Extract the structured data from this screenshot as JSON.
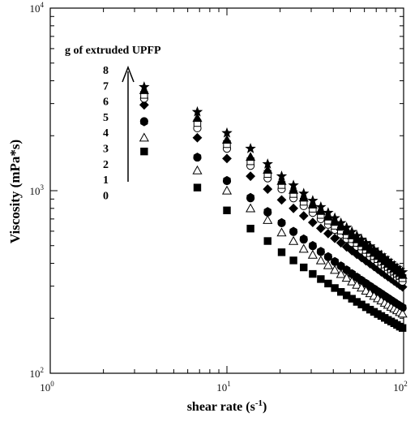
{
  "chart_data": {
    "type": "scatter",
    "title": "",
    "xlabel": "shear rate (s",
    "xlabel_sup": "-1",
    "xlabel_tail": ")",
    "ylabel": "Viscosity (mPa*s)",
    "x_scale": "log",
    "y_scale": "log",
    "xlim": [
      1,
      100
    ],
    "ylim": [
      100,
      10000
    ],
    "x_ticks": [
      {
        "value": 1,
        "base": "10",
        "exp": "0"
      },
      {
        "value": 10,
        "base": "10",
        "exp": "1"
      },
      {
        "value": 100,
        "base": "10",
        "exp": "2"
      }
    ],
    "y_ticks": [
      {
        "value": 100,
        "base": "10",
        "exp": "2"
      },
      {
        "value": 1000,
        "base": "10",
        "exp": "3"
      },
      {
        "value": 10000,
        "base": "10",
        "exp": "4"
      }
    ],
    "grid": false,
    "legend": {
      "title": "g of extruded UPFP",
      "placement": "top-left",
      "labels": [
        "8",
        "7",
        "6",
        "5",
        "4",
        "3",
        "2",
        "1",
        "0"
      ]
    },
    "x": [
      3.4,
      6.8,
      10.0,
      13.6,
      17.0,
      20.4,
      23.8,
      27.2,
      30.6,
      34.0,
      37.4,
      40.8,
      44.2,
      47.6,
      51.0,
      54.4,
      57.8,
      61.2,
      64.6,
      68.0,
      71.4,
      74.8,
      78.2,
      81.6,
      85.0,
      88.4,
      91.8,
      95.2,
      98.6
    ],
    "series": [
      {
        "marker": "filled-square",
        "values": [
          1640,
          1040,
          780,
          620,
          530,
          460,
          415,
          380,
          350,
          328,
          310,
          293,
          279,
          267,
          256,
          246,
          238,
          230,
          223,
          217,
          211,
          206,
          201,
          196,
          192,
          188,
          184,
          180,
          177
        ]
      },
      {
        "marker": "filled-circle",
        "values": [
          2400,
          1520,
          1130,
          910,
          760,
          665,
          595,
          540,
          497,
          462,
          433,
          408,
          386,
          367,
          350,
          335,
          322,
          310,
          299,
          289,
          280,
          272,
          264,
          257,
          250,
          244,
          238,
          233,
          228
        ]
      },
      {
        "marker": "open-triangle",
        "values": [
          1950,
          1290,
          1000,
          800,
          690,
          590,
          530,
          480,
          445,
          415,
          390,
          368,
          349,
          333,
          318,
          305,
          294,
          283,
          274,
          265,
          257,
          250,
          243,
          237,
          231,
          226,
          221,
          216,
          212
        ]
      },
      {
        "marker": "filled-hexagon",
        "values": [
          2380,
          1530,
          1140,
          920,
          770,
          670,
          600,
          545,
          502,
          466,
          436,
          410,
          388,
          369,
          352,
          337,
          324,
          312,
          301,
          291,
          282,
          274,
          266,
          259,
          252,
          246,
          240,
          235,
          230
        ]
      },
      {
        "marker": "filled-diamond",
        "values": [
          2950,
          1950,
          1500,
          1200,
          1020,
          890,
          800,
          728,
          670,
          622,
          582,
          548,
          518,
          492,
          469,
          448,
          430,
          413,
          398,
          384,
          371,
          359,
          348,
          338,
          329,
          320,
          312,
          304,
          297
        ]
      },
      {
        "marker": "open-circle",
        "values": [
          3200,
          2200,
          1700,
          1370,
          1170,
          1020,
          910,
          825,
          757,
          700,
          652,
          611,
          576,
          545,
          518,
          494,
          472,
          453,
          435,
          419,
          404,
          390,
          378,
          366,
          355,
          345,
          335,
          326,
          318
        ]
      },
      {
        "marker": "open-square",
        "values": [
          3350,
          2350,
          1800,
          1450,
          1235,
          1075,
          960,
          870,
          797,
          737,
          686,
          643,
          605,
          572,
          543,
          518,
          495,
          474,
          455,
          438,
          422,
          408,
          394,
          382,
          371,
          360,
          350,
          341,
          332
        ]
      },
      {
        "marker": "filled-triangle",
        "values": [
          3550,
          2500,
          1900,
          1530,
          1300,
          1130,
          1010,
          915,
          838,
          774,
          720,
          674,
          634,
          599,
          568,
          541,
          516,
          494,
          474,
          456,
          439,
          424,
          410,
          397,
          385,
          374,
          364,
          354,
          345
        ]
      },
      {
        "marker": "filled-star",
        "values": [
          3700,
          2700,
          2070,
          1700,
          1400,
          1200,
          1070,
          965,
          882,
          814,
          757,
          708,
          665,
          628,
          595,
          566,
          540,
          517,
          496,
          476,
          459,
          443,
          428,
          414,
          401,
          389,
          378,
          368,
          358
        ]
      }
    ]
  }
}
